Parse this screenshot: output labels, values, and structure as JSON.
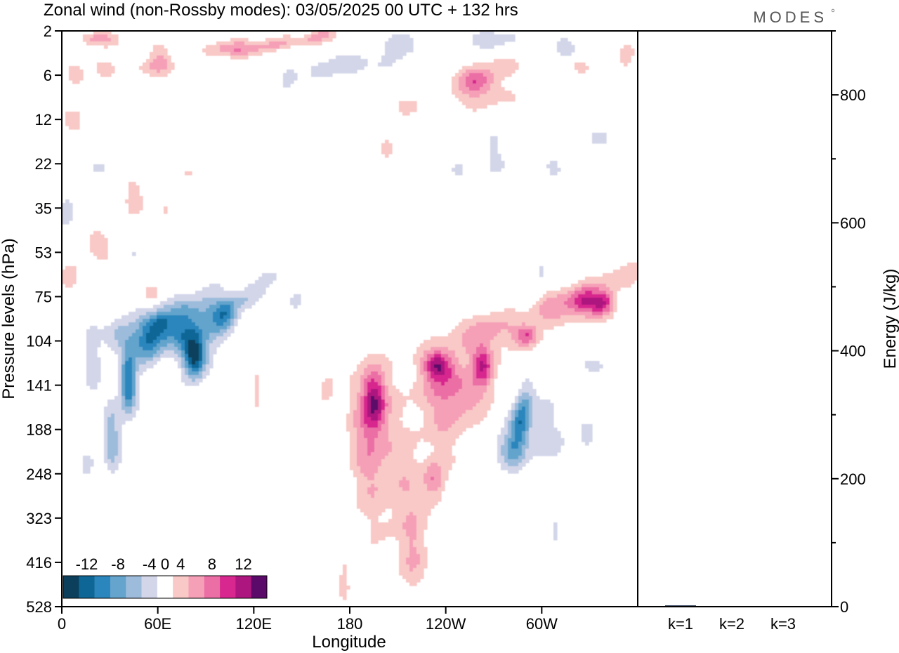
{
  "title": "Zonal wind (non-Rossby modes):  03/05/2025  00 UTC  + 132 hrs",
  "brand": "MODES",
  "chart_data": [
    {
      "type": "heatmap",
      "title": "Zonal wind (non-Rossby modes):  03/05/2025  00 UTC  + 132 hrs",
      "xlabel": "Longitude",
      "ylabel": "Pressure levels (hPa)",
      "x_ticks": [
        "0",
        "60E",
        "120E",
        "180",
        "120W",
        "60W"
      ],
      "x_tick_degrees": [
        0,
        60,
        120,
        180,
        240,
        300
      ],
      "xlim": [
        0,
        360
      ],
      "y_ticks": [
        "2",
        "6",
        "12",
        "22",
        "35",
        "53",
        "75",
        "104",
        "141",
        "188",
        "248",
        "323",
        "416",
        "528"
      ],
      "colorbar": {
        "labels": [
          "-12",
          "-8",
          "-4",
          "0",
          "4",
          "8",
          "12"
        ],
        "label_values": [
          -12,
          -8,
          -4,
          0,
          4,
          8,
          12
        ],
        "levels": [
          -14,
          -12,
          -10,
          -8,
          -6,
          -4,
          -2,
          2,
          4,
          6,
          8,
          10,
          12,
          14
        ],
        "colors": [
          "#0b3f5c",
          "#0e6696",
          "#2a86bd",
          "#64a4cd",
          "#9dbcdc",
          "#d3d6e9",
          "#ffffff",
          "#f8c9c6",
          "#f6a0b8",
          "#eb6ea5",
          "#d8288f",
          "#ad167e",
          "#5c0a6a"
        ]
      },
      "features": [
        {
          "sign": "negative",
          "peak": -10,
          "lon": 42,
          "level": "141",
          "note": "core near 141 hPa at ~40E"
        },
        {
          "sign": "negative",
          "peak": -10,
          "lon": 83,
          "level": "104",
          "note": "band 100-130 hPa 50E-110E"
        },
        {
          "sign": "negative",
          "peak": -8,
          "lon": 287,
          "level": "188"
        },
        {
          "sign": "positive",
          "peak": 8,
          "lon": 191,
          "level": "141"
        },
        {
          "sign": "positive",
          "peak": 8,
          "lon": 240,
          "level": "104"
        },
        {
          "sign": "positive",
          "peak": 10,
          "lon": 335,
          "level": "75"
        },
        {
          "sign": "positive",
          "peak": 8,
          "lon": 129,
          "level": "2"
        }
      ]
    },
    {
      "type": "bar",
      "ylabel": "Energy (J/kg)",
      "categories": [
        "k=1",
        "k=2",
        "k=3"
      ],
      "values": [
        2,
        1,
        1
      ],
      "ylim": [
        0,
        900
      ],
      "y_ticks": [
        0,
        200,
        400,
        600,
        800
      ]
    }
  ]
}
